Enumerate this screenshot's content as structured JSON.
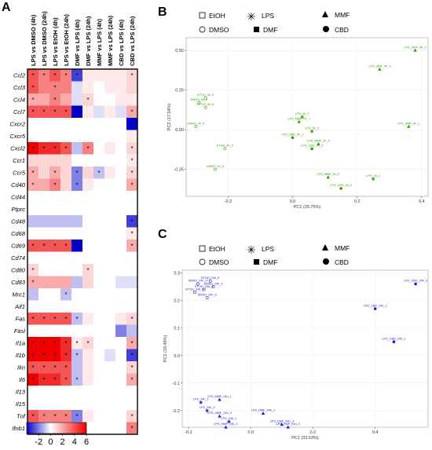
{
  "panels": {
    "a": "A",
    "b": "B",
    "c": "C"
  },
  "legend_labels": {
    "etoh": "EtOH",
    "dmso": "DMSO",
    "lps": "LPS",
    "dmf": "DMF",
    "mmf": "MMF",
    "cbd": "CBD"
  },
  "chart_data": [
    {
      "type": "heatmap",
      "columns": [
        "LPS vs DMSO (4h)",
        "LPS vs DMSO (24h)",
        "LPS vs EtOH (4h)",
        "LPS vs EtOH (24h)",
        "DMF vs LPS (4h)",
        "DMF vs LPS (24h)",
        "MMF vs LPS (4h)",
        "MMF vs LPS (24h)",
        "CBD vs LPS (4h)",
        "CBD vs LPS (24h)"
      ],
      "rows": [
        "Ccl2",
        "Ccl3",
        "Ccl4",
        "Ccl7",
        "Cxcr2",
        "Cxcr5",
        "Cxcl2",
        "Ccr1",
        "Ccr5",
        "Cd40",
        "Cd44",
        "Ptprc",
        "Cd48",
        "Cd68",
        "Cd69",
        "Cd74",
        "Cd80",
        "Cd83",
        "Mrc1",
        "Aif1",
        "Fas",
        "Fasl",
        "Il1a",
        "Il1b",
        "Ilm",
        "Il6",
        "Il13",
        "Il15",
        "Tnf",
        "Ifnb1"
      ],
      "values": [
        [
          4,
          3,
          4,
          3,
          -3,
          0.5,
          0.5,
          0.5,
          0.5,
          1
        ],
        [
          4,
          3,
          3,
          3,
          -0.5,
          0.5,
          0,
          0.5,
          0.5,
          1
        ],
        [
          2,
          2,
          3,
          2,
          -0.5,
          1,
          0,
          0,
          0.5,
          0.5
        ],
        [
          4,
          4,
          4,
          4,
          -4,
          0.5,
          -0.5,
          0.5,
          -0.5,
          2
        ],
        [
          0,
          0,
          0,
          0,
          0,
          0,
          0,
          0,
          0,
          -5
        ],
        [
          0,
          0,
          0,
          0,
          0,
          0,
          0,
          0,
          0,
          0.5
        ],
        [
          6,
          5,
          5,
          4,
          -1,
          3,
          0,
          0.5,
          0,
          1
        ],
        [
          1,
          1,
          1,
          1,
          0,
          0,
          0,
          0,
          0,
          0.5
        ],
        [
          2,
          1,
          2,
          1,
          -2,
          1,
          -1,
          0.5,
          0,
          1
        ],
        [
          2,
          2,
          3,
          1,
          -2,
          0.5,
          0,
          0,
          0,
          2
        ],
        [
          0,
          0,
          0,
          0,
          0,
          0,
          0,
          0,
          0,
          0
        ],
        [
          0,
          0,
          0,
          0,
          0,
          0,
          0,
          0,
          0,
          0
        ],
        [
          -1,
          -1,
          -1,
          -1,
          -1,
          0,
          0,
          0,
          0,
          -3
        ],
        [
          0,
          0,
          0,
          0,
          0,
          0,
          0,
          0,
          0,
          0.5
        ],
        [
          4,
          4,
          4,
          4,
          -4,
          0,
          0,
          0,
          0,
          2
        ],
        [
          0,
          0,
          0,
          0,
          0,
          0,
          0,
          0,
          0,
          0
        ],
        [
          1,
          0,
          0,
          0,
          0,
          1,
          0,
          0,
          0,
          0
        ],
        [
          2,
          2,
          2,
          2,
          -1,
          1,
          0,
          0,
          -0.5,
          -0.5
        ],
        [
          -1,
          0,
          0,
          -1,
          0,
          0,
          0,
          0,
          0,
          0
        ],
        [
          0,
          0,
          0,
          0,
          0,
          0,
          0,
          0,
          0,
          0
        ],
        [
          4,
          4,
          4,
          4,
          -1,
          0.5,
          0,
          0,
          0.5,
          1
        ],
        [
          0,
          0,
          0,
          0,
          0,
          0,
          0,
          0,
          -2,
          -1
        ],
        [
          6,
          6,
          6,
          5,
          0.5,
          1,
          0,
          0,
          0,
          2
        ],
        [
          6,
          6,
          6,
          5,
          -1,
          0.5,
          0,
          -0.5,
          0,
          -3
        ],
        [
          4,
          4,
          4,
          4,
          -1,
          0.5,
          0,
          0,
          0,
          1
        ],
        [
          6,
          5,
          5,
          4,
          -1,
          0.5,
          0,
          0,
          0,
          2
        ],
        [
          0,
          0,
          0,
          0,
          0,
          0,
          0,
          0,
          0,
          0
        ],
        [
          0,
          0,
          0,
          0,
          0,
          0,
          0,
          0,
          0,
          0
        ],
        [
          4,
          3,
          3,
          3,
          -2,
          0.5,
          0,
          0,
          0,
          1
        ],
        [
          1,
          1,
          2,
          1,
          0,
          0,
          0,
          0,
          0,
          3
        ]
      ],
      "significant": [
        [
          1,
          1,
          1,
          1,
          1,
          0,
          0,
          0,
          0,
          1
        ],
        [
          1,
          0,
          1,
          0,
          0,
          0,
          0,
          0,
          0,
          0
        ],
        [
          1,
          0,
          1,
          0,
          0,
          1,
          0,
          0,
          0,
          0
        ],
        [
          1,
          1,
          1,
          1,
          1,
          0,
          0,
          0,
          0,
          1
        ],
        [
          0,
          0,
          0,
          0,
          0,
          0,
          0,
          0,
          0,
          0
        ],
        [
          0,
          0,
          0,
          0,
          0,
          0,
          0,
          0,
          0,
          0
        ],
        [
          1,
          1,
          1,
          1,
          0,
          1,
          0,
          0,
          0,
          1
        ],
        [
          0,
          0,
          0,
          0,
          0,
          0,
          0,
          0,
          0,
          1
        ],
        [
          1,
          0,
          1,
          0,
          1,
          0,
          1,
          0,
          0,
          1
        ],
        [
          1,
          0,
          1,
          0,
          1,
          0,
          0,
          0,
          0,
          1
        ],
        [
          0,
          0,
          0,
          0,
          0,
          0,
          0,
          0,
          0,
          0
        ],
        [
          0,
          0,
          0,
          0,
          0,
          0,
          0,
          0,
          0,
          0
        ],
        [
          0,
          0,
          0,
          0,
          0,
          0,
          0,
          0,
          0,
          1
        ],
        [
          0,
          0,
          0,
          0,
          0,
          0,
          0,
          0,
          0,
          1
        ],
        [
          1,
          1,
          1,
          1,
          1,
          0,
          0,
          0,
          0,
          1
        ],
        [
          0,
          0,
          0,
          0,
          0,
          0,
          0,
          0,
          0,
          0
        ],
        [
          1,
          0,
          0,
          0,
          0,
          1,
          0,
          0,
          0,
          0
        ],
        [
          1,
          0,
          0,
          0,
          0,
          0,
          0,
          0,
          0,
          0
        ],
        [
          0,
          0,
          0,
          1,
          0,
          0,
          0,
          0,
          0,
          0
        ],
        [
          0,
          0,
          0,
          0,
          0,
          0,
          0,
          0,
          0,
          0
        ],
        [
          1,
          1,
          1,
          1,
          1,
          0,
          0,
          0,
          0,
          1
        ],
        [
          0,
          0,
          0,
          0,
          0,
          0,
          0,
          0,
          0,
          0
        ],
        [
          1,
          1,
          1,
          1,
          1,
          1,
          0,
          0,
          0,
          1
        ],
        [
          1,
          1,
          1,
          1,
          1,
          0,
          0,
          0,
          0,
          1
        ],
        [
          1,
          1,
          1,
          1,
          0,
          0,
          0,
          0,
          0,
          1
        ],
        [
          1,
          1,
          1,
          1,
          1,
          0,
          0,
          0,
          0,
          1
        ],
        [
          0,
          0,
          0,
          0,
          0,
          0,
          0,
          0,
          0,
          0
        ],
        [
          0,
          0,
          0,
          0,
          0,
          0,
          0,
          0,
          0,
          0
        ],
        [
          1,
          1,
          1,
          1,
          1,
          0,
          0,
          0,
          0,
          1
        ],
        [
          0,
          0,
          0,
          0,
          0,
          0,
          0,
          0,
          0,
          1
        ]
      ],
      "star_symbol": "*",
      "colorbar": {
        "min": -4,
        "max": 6,
        "ticks": [
          "-2",
          "0",
          "2",
          "4",
          "6"
        ],
        "tick_values": [
          -2,
          0,
          2,
          4,
          6
        ],
        "low_color": "#0000cc",
        "mid_color": "#ffffff",
        "high_color": "#ee0000"
      }
    },
    {
      "type": "scatter",
      "xlabel": "PC1 (25.75%)",
      "ylabel": "PC2 (17.54%)",
      "xlim": [
        -0.33,
        0.42
      ],
      "ylim": [
        -0.42,
        0.58
      ],
      "xticks": [
        -0.2,
        0.0,
        0.2,
        0.4
      ],
      "xtick_labels": [
        "-0.2",
        "0.0",
        "0.2",
        "0.4"
      ],
      "yticks": [
        -0.25,
        0.0,
        0.25,
        0.5
      ],
      "ytick_labels": [
        "-0.25",
        "0.00",
        "0.25",
        "0.50"
      ],
      "color": "#339900",
      "points": [
        {
          "label": "LPS_DMF_4h_1",
          "x": 0.38,
          "y": 0.5,
          "shape": "triangle"
        },
        {
          "label": "LPS_DMF_4h_3",
          "x": 0.27,
          "y": 0.38,
          "shape": "triangle"
        },
        {
          "label": "LPS_DMF_4h_2",
          "x": 0.36,
          "y": 0.02,
          "shape": "triangle"
        },
        {
          "label": "ETOH_4h_4",
          "x": -0.27,
          "y": 0.2,
          "shape": "circle"
        },
        {
          "label": "DMSO_4h_4",
          "x": -0.29,
          "y": 0.17,
          "shape": "circle"
        },
        {
          "label": "ETOH_4h_6",
          "x": -0.27,
          "y": 0.14,
          "shape": "circle"
        },
        {
          "label": "DMSO_4h_5",
          "x": -0.3,
          "y": 0.02,
          "shape": "circle"
        },
        {
          "label": "ETOH_4h_5",
          "x": -0.21,
          "y": -0.12,
          "shape": "circle"
        },
        {
          "label": "DMSO_4h_6",
          "x": -0.24,
          "y": -0.25,
          "shape": "circle"
        },
        {
          "label": "LPS_4h_1",
          "x": 0.03,
          "y": 0.08,
          "shape": "star"
        },
        {
          "label": "LPS_MMF_4h_1",
          "x": 0.02,
          "y": 0.05,
          "shape": "triangle"
        },
        {
          "label": "LPS_4h_3",
          "x": 0.06,
          "y": -0.01,
          "shape": "star"
        },
        {
          "label": "LPS_CBD_4h_1",
          "x": 0.0,
          "y": -0.05,
          "shape": "circle"
        },
        {
          "label": "LPS_MMF_4h_3",
          "x": 0.08,
          "y": -0.09,
          "shape": "triangle"
        },
        {
          "label": "LPS_CBD_4h_3",
          "x": 0.06,
          "y": -0.12,
          "shape": "circle"
        },
        {
          "label": "LPS_MMF_4h_2",
          "x": 0.11,
          "y": -0.3,
          "shape": "triangle"
        },
        {
          "label": "LPS_4h_2",
          "x": 0.25,
          "y": -0.31,
          "shape": "star"
        },
        {
          "label": "LPS_CBD_4h_2",
          "x": 0.15,
          "y": -0.37,
          "shape": "circle"
        }
      ]
    },
    {
      "type": "scatter",
      "xlabel": "PC1 (33.63%)",
      "ylabel": "PC2 (18.49%)",
      "xlim": [
        -0.22,
        0.57
      ],
      "ylim": [
        -0.26,
        0.31
      ],
      "xticks": [
        -0.2,
        0.0,
        0.2,
        0.4
      ],
      "xtick_labels": [
        "-0.2",
        "0.0",
        "0.2",
        "0.4"
      ],
      "yticks": [
        -0.2,
        -0.1,
        0.0,
        0.1,
        0.2,
        0.3
      ],
      "ytick_labels": [
        "-0.2",
        "-0.1",
        "0.0",
        "0.1",
        "0.2",
        "0.3"
      ],
      "color": "#1a1acc",
      "points": [
        {
          "label": "ETOH_24h_5",
          "x": -0.13,
          "y": 0.27,
          "shape": "circle"
        },
        {
          "label": "DMSO_24h_5",
          "x": -0.12,
          "y": 0.25,
          "shape": "circle"
        },
        {
          "label": "DMSO_24h_4",
          "x": -0.17,
          "y": 0.26,
          "shape": "circle"
        },
        {
          "label": "ETOH_24h_4",
          "x": -0.15,
          "y": 0.24,
          "shape": "circle"
        },
        {
          "label": "ETOH_24h_6",
          "x": -0.18,
          "y": 0.23,
          "shape": "circle"
        },
        {
          "label": "DMSO_24h_6",
          "x": -0.14,
          "y": 0.21,
          "shape": "circle"
        },
        {
          "label": "LPS_CBD_24h_3",
          "x": 0.53,
          "y": 0.26,
          "shape": "circle"
        },
        {
          "label": "LPS_CBD_24h_1",
          "x": 0.4,
          "y": 0.17,
          "shape": "circle"
        },
        {
          "label": "LPS_CBD_24h_2",
          "x": 0.46,
          "y": 0.05,
          "shape": "circle"
        },
        {
          "label": "LPS_MMF_24h_1",
          "x": -0.1,
          "y": -0.16,
          "shape": "triangle"
        },
        {
          "label": "LPS_24h_1",
          "x": -0.16,
          "y": -0.17,
          "shape": "star"
        },
        {
          "label": "LPS_24h_3",
          "x": -0.14,
          "y": -0.2,
          "shape": "star"
        },
        {
          "label": "LPS_MMF_24h_3",
          "x": -0.1,
          "y": -0.22,
          "shape": "triangle"
        },
        {
          "label": "LPS_DMF_24h_1",
          "x": 0.04,
          "y": -0.21,
          "shape": "triangle"
        },
        {
          "label": "LPS_24h_2",
          "x": -0.07,
          "y": -0.24,
          "shape": "star"
        },
        {
          "label": "LPS_MMF_24h_2",
          "x": -0.08,
          "y": -0.26,
          "shape": "triangle"
        },
        {
          "label": "LPS_DMF_24h_3",
          "x": 0.1,
          "y": -0.25,
          "shape": "triangle"
        },
        {
          "label": "LPS_DMF_24h_2",
          "x": 0.12,
          "y": -0.26,
          "shape": "triangle"
        }
      ]
    }
  ]
}
